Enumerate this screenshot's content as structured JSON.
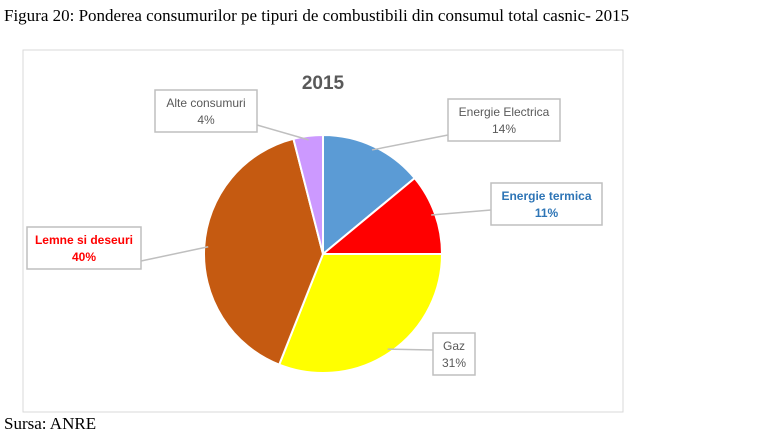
{
  "figure_caption": "Figura 20: Ponderea consumurilor pe tipuri de combustibili din consumul total casnic- 2015",
  "source_note": "Sursa: ANRE",
  "chart_data": {
    "type": "pie",
    "title": "2015",
    "slices": [
      {
        "name": "Energie Electrica",
        "value": 14,
        "label": "14%",
        "color": "#5b9bd5",
        "label_color": "#595959",
        "bold": false
      },
      {
        "name": "Energie termica",
        "value": 11,
        "label": "11%",
        "color": "#ff0000",
        "label_color": "#2e75b6",
        "bold": true
      },
      {
        "name": "Gaz",
        "value": 31,
        "label": "31%",
        "color": "#ffff00",
        "label_color": "#595959",
        "bold": false
      },
      {
        "name": "Lemne si deseuri",
        "value": 40,
        "label": "40%",
        "color": "#c55a11",
        "label_color": "#ff0000",
        "bold": true
      },
      {
        "name": "Alte consumuri",
        "value": 4,
        "label": "4%",
        "color": "#cc99ff",
        "label_color": "#595959",
        "bold": false
      }
    ]
  }
}
